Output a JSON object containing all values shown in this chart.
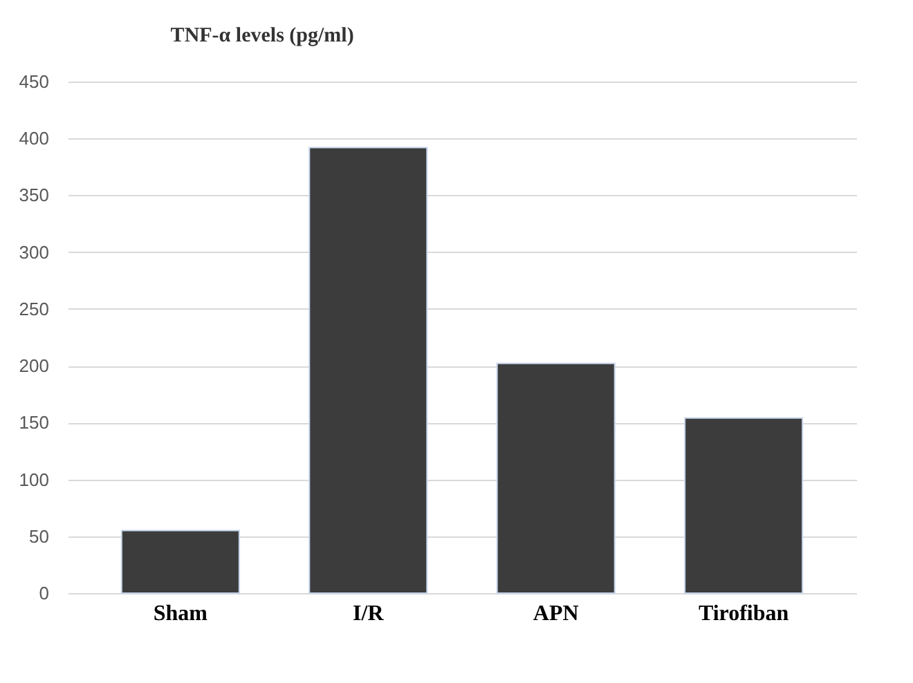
{
  "chart_data": {
    "type": "bar",
    "title": "TNF-α levels (pg/ml)",
    "categories": [
      "Sham",
      "I/R",
      "APN",
      "Tirofiban"
    ],
    "values": [
      55,
      392,
      202,
      154
    ],
    "color": "#3c3c3c",
    "ylim": [
      0,
      450
    ],
    "yticks": [
      0,
      50,
      100,
      150,
      200,
      250,
      300,
      350,
      400,
      450
    ],
    "grid": "y"
  }
}
